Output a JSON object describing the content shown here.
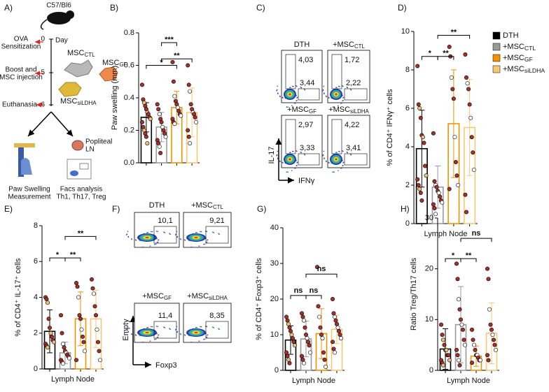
{
  "figure": {
    "panel_labels": [
      "A)",
      "B)",
      "C)",
      "D)",
      "E)",
      "F)",
      "G)",
      "H)"
    ],
    "schematic": {
      "strain": "C57/Bl6",
      "day_label": "Day",
      "steps": [
        {
          "lines": [
            "OVA",
            "Sensitization"
          ],
          "day": "0"
        },
        {
          "lines": [
            "Boost and",
            "MSC injection"
          ],
          "day": "5"
        },
        {
          "lines": [
            "Euthanasia"
          ],
          "day": "6"
        }
      ],
      "cells": [
        {
          "text": "MSC",
          "sub": "CTL"
        },
        {
          "text": "MSC",
          "sub": "GF"
        },
        {
          "text": "MSC",
          "sub": "siLDHA"
        }
      ],
      "organ": [
        "Popliteal",
        "LN"
      ],
      "readouts": [
        [
          "Paw Swelling",
          "Measurement"
        ],
        [
          "Facs analysis",
          "Th1, Th17, Treg"
        ]
      ]
    },
    "flow_ifng": {
      "y_axis": "IL-17",
      "x_axis": "IFNγ",
      "plots": [
        {
          "text": "DTH",
          "gates": [
            "4,03",
            "3,44"
          ]
        },
        {
          "text": "+MSC",
          "sub": "CTL",
          "gates": [
            "1,72",
            "2,22"
          ]
        },
        {
          "text": "+MSC",
          "sub": "GF",
          "gates": [
            "2,97",
            "3,33"
          ]
        },
        {
          "text": "+MSC",
          "sub": "siLDHA",
          "gates": [
            "4,22",
            "3,41"
          ]
        }
      ]
    },
    "flow_foxp3": {
      "y_axis": "Empty",
      "x_axis": "Foxp3",
      "plots": [
        {
          "text": "DTH",
          "gate": "10,1"
        },
        {
          "text": "+MSC",
          "sub": "CTL",
          "gate": "9,21"
        },
        {
          "text": "+MSC",
          "sub": "GF",
          "gate": "11,4"
        },
        {
          "text": "+MSC",
          "sub": "siLDHA",
          "gate": "8,35"
        }
      ]
    }
  },
  "chart_data": [
    {
      "type": "bar",
      "ylabel": "Paw swelling (mm)",
      "ylim": [
        0,
        0.8
      ],
      "yticks": [
        {
          "value": 0,
          "label": "0.0"
        },
        0.2,
        0.4,
        0.6,
        0.8
      ],
      "point_color": "#a3302a",
      "series": [
        {
          "color": "#000000",
          "values": [
            0.28
          ],
          "errors": [
            0.09
          ],
          "points": [
            0.48,
            0.39,
            0.37,
            0.35,
            0.33,
            0.31,
            0.3,
            0.28,
            0.27,
            0.25,
            0.22,
            0.2,
            0.18,
            0.16,
            0.12
          ]
        },
        {
          "color": "#9a9a9a",
          "values": [
            0.22
          ],
          "errors": [
            0.09
          ],
          "points": [
            0.36,
            0.33,
            0.3,
            0.27,
            0.25,
            0.22,
            0.2,
            0.18,
            0.16,
            0.14,
            0.12,
            0.1,
            0.06
          ]
        },
        {
          "color": "#f39200",
          "values": [
            0.34
          ],
          "errors": [
            0.1
          ],
          "points": [
            0.62,
            0.5,
            0.41,
            0.38,
            0.36,
            0.34,
            0.32,
            0.3,
            0.29,
            0.27,
            0.25,
            0.24
          ]
        },
        {
          "color": "#f7c873",
          "values": [
            0.31
          ],
          "errors": [
            0.15
          ],
          "points": [
            0.6,
            0.48,
            0.44,
            0.36,
            0.33,
            0.31,
            0.3,
            0.28,
            0.25,
            0.2,
            0.16,
            0.12
          ]
        }
      ],
      "annotations": [
        {
          "text": "*",
          "between": [
            0,
            2
          ],
          "y": 0.6
        },
        {
          "text": "***",
          "between": [
            1,
            2
          ],
          "y": 0.74
        },
        {
          "text": "**",
          "between": [
            1,
            3
          ],
          "y": 0.64
        }
      ]
    },
    {
      "type": "bar",
      "ylabel": "% of CD4⁺ IFNγ⁺ cells",
      "xlabel": "Lymph Node",
      "ylim": [
        0,
        10
      ],
      "yticks": [
        0,
        2,
        4,
        6,
        8,
        10
      ],
      "point_color": "#a3302a",
      "legend": "right",
      "series": [
        {
          "name": "DTH",
          "color": "#000000",
          "values": [
            3.9
          ],
          "errors": [
            2.0
          ],
          "points": [
            8.2,
            6.2,
            6.0,
            5.5,
            4.6,
            4.5,
            4.2,
            3.0,
            2.5,
            2.3,
            2.0,
            1.8,
            1.6,
            1.2
          ]
        },
        {
          "name": "+MSC",
          "sub": "CTL",
          "color": "#9a9a9a",
          "values": [
            1.9
          ],
          "errors": [
            1.1
          ],
          "points": [
            4.7,
            2.2,
            2.0,
            1.9,
            1.7,
            1.6,
            1.4,
            1.2,
            1.1,
            1.0,
            0.8,
            0.5
          ]
        },
        {
          "name": "+MSC",
          "sub": "GF",
          "color": "#f39200",
          "values": [
            5.2
          ],
          "errors": [
            2.8
          ],
          "points": [
            9.2,
            8.7,
            7.6,
            7.0,
            6.5,
            4.5,
            3.2,
            2.5,
            2.0,
            1.8
          ]
        },
        {
          "name": "+MSC",
          "sub": "siLDHA",
          "color": "#f7c873",
          "values": [
            5.0
          ],
          "errors": [
            2.5
          ],
          "points": [
            8.8,
            7.6,
            7.3,
            7.0,
            6.2,
            5.5,
            4.5,
            3.7,
            2.8,
            1.5,
            0.6
          ]
        }
      ],
      "annotations": [
        {
          "text": "*",
          "between": [
            0,
            1
          ],
          "y": 8.7
        },
        {
          "text": "**",
          "between": [
            1,
            2
          ],
          "y": 8.7
        },
        {
          "text": "**",
          "between": [
            1,
            3
          ],
          "y": 9.8
        }
      ]
    },
    {
      "type": "bar",
      "ylabel": "% of CD4⁺ IL-17⁺ cells",
      "xlabel": "Lymph Node",
      "ylim": [
        0,
        8
      ],
      "yticks": [
        0,
        2,
        4,
        6,
        8
      ],
      "point_color": "#a3302a",
      "series": [
        {
          "color": "#000000",
          "values": [
            2.1
          ],
          "errors": [
            1.2
          ],
          "points": [
            4.0,
            3.9,
            3.7,
            2.8,
            2.3,
            2.0,
            1.8,
            1.6,
            1.5,
            1.4,
            1.3,
            1.2
          ]
        },
        {
          "color": "#9a9a9a",
          "values": [
            0.9
          ],
          "errors": [
            0.6
          ],
          "points": [
            3.0,
            2.0,
            1.4,
            1.2,
            1.0,
            0.9,
            0.8,
            0.7,
            0.6,
            0.5,
            0.4,
            0.3
          ]
        },
        {
          "color": "#f39200",
          "values": [
            2.8
          ],
          "errors": [
            1.5
          ],
          "points": [
            4.8,
            4.6,
            4.0,
            3.0,
            2.8,
            2.2,
            1.8,
            1.5,
            1.0,
            0.5
          ]
        },
        {
          "color": "#f7c873",
          "values": [
            2.8
          ],
          "errors": [
            1.6
          ],
          "points": [
            5.0,
            4.5,
            4.2,
            3.5,
            3.0,
            2.2,
            1.5,
            1.0,
            0.5
          ]
        }
      ],
      "annotations": [
        {
          "text": "*",
          "between": [
            0,
            1
          ],
          "y": 6.2
        },
        {
          "text": "**",
          "between": [
            1,
            2
          ],
          "y": 6.2
        },
        {
          "text": "**",
          "between": [
            1,
            3
          ],
          "y": 7.4
        }
      ]
    },
    {
      "type": "bar",
      "ylabel": "% of CD4⁺ Foxp3⁺ cells",
      "xlabel": "Lymph Node",
      "ylim": [
        0,
        40
      ],
      "yticks": [
        0,
        10,
        20,
        30,
        40
      ],
      "point_color": "#a3302a",
      "series": [
        {
          "color": "#000000",
          "values": [
            8.5
          ],
          "errors": [
            4
          ],
          "points": [
            15,
            14,
            13,
            12,
            11,
            10,
            9,
            8,
            7,
            5,
            4,
            3,
            2
          ]
        },
        {
          "color": "#9a9a9a",
          "values": [
            8.8
          ],
          "errors": [
            5
          ],
          "points": [
            16,
            15,
            14,
            12,
            10,
            9,
            8,
            7,
            5,
            4,
            3,
            2
          ]
        },
        {
          "color": "#f39200",
          "values": [
            10.3
          ],
          "errors": [
            7
          ],
          "points": [
            29,
            18,
            15,
            12,
            10,
            9,
            5,
            3,
            1
          ]
        },
        {
          "color": "#f7c873",
          "values": [
            11.5
          ],
          "errors": [
            4
          ],
          "points": [
            20,
            16,
            15,
            14,
            13,
            12,
            11,
            10,
            9,
            8,
            6,
            5
          ]
        }
      ],
      "annotations": [
        {
          "text": "ns",
          "between": [
            0,
            1
          ],
          "y": 21
        },
        {
          "text": "ns",
          "between": [
            1,
            2
          ],
          "y": 21
        },
        {
          "text": "ns",
          "between": [
            1,
            3
          ],
          "y": 27
        }
      ]
    },
    {
      "type": "bar",
      "ylabel": "Ratio Treg/Th17 cells",
      "xlabel": "Lymph Node",
      "ylim": [
        0,
        30
      ],
      "yticks": [
        0,
        10,
        20,
        30
      ],
      "point_color": "#a3302a",
      "series": [
        {
          "color": "#000000",
          "values": [
            4.2
          ],
          "errors": [
            4
          ],
          "points": [
            9,
            7,
            6,
            5,
            4,
            4,
            3,
            3,
            2,
            2,
            1.5,
            1
          ]
        },
        {
          "color": "#9a9a9a",
          "values": [
            9
          ],
          "errors": [
            7.5
          ],
          "points": [
            21,
            18,
            14,
            12,
            10,
            9,
            8,
            6,
            5,
            4,
            3,
            2,
            1
          ]
        },
        {
          "color": "#f39200",
          "values": [
            2.8
          ],
          "errors": [
            2
          ],
          "points": [
            8,
            6,
            5,
            4,
            3,
            3,
            2.5,
            2,
            2,
            1.5
          ]
        },
        {
          "color": "#f7c873",
          "values": [
            7.3
          ],
          "errors": [
            6
          ],
          "points": [
            20,
            18,
            12,
            9,
            8,
            7,
            6,
            5,
            4,
            3,
            2
          ]
        }
      ],
      "annotations": [
        {
          "text": "*",
          "between": [
            0,
            1
          ],
          "y": 22
        },
        {
          "text": "**",
          "between": [
            1,
            2
          ],
          "y": 22
        },
        {
          "text": "ns",
          "between": [
            1,
            3
          ],
          "y": 26
        }
      ]
    }
  ]
}
